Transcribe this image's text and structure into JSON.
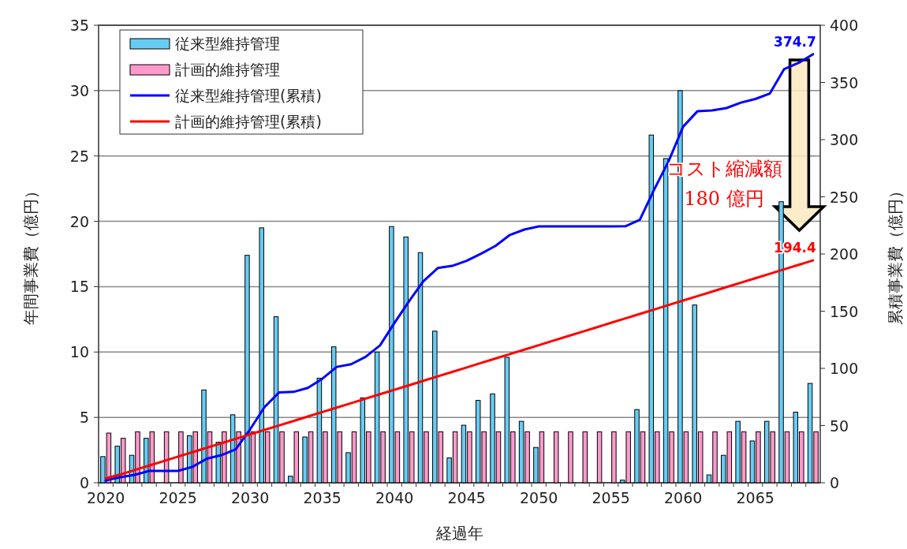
{
  "chart_data": {
    "type": "bar",
    "xlabel": "経過年",
    "ylabel": "年間事業費（億円）",
    "y2label": "累積事業費（億円）",
    "categories": [
      "2020",
      null,
      null,
      null,
      null,
      "2025",
      null,
      null,
      null,
      null,
      "2030",
      null,
      null,
      null,
      null,
      "2035",
      null,
      null,
      null,
      null,
      "2040",
      null,
      null,
      null,
      null,
      "2045",
      null,
      null,
      null,
      null,
      "2050",
      null,
      null,
      null,
      null,
      "2055",
      null,
      null,
      null,
      null,
      "2060",
      null,
      null,
      null,
      null,
      "2065",
      null,
      null,
      null,
      null
    ],
    "series": [
      {
        "name": "従来型維持管理",
        "type": "bar",
        "color": "#66ccf5",
        "values": [
          2.0,
          2.8,
          2.1,
          3.4,
          0,
          0,
          3.6,
          7.1,
          3.1,
          5.2,
          17.4,
          19.5,
          12.7,
          0.5,
          3.5,
          8.0,
          10.4,
          2.3,
          6.5,
          10.0,
          19.6,
          18.8,
          17.6,
          11.6,
          1.9,
          4.4,
          6.3,
          6.8,
          9.6,
          4.7,
          2.7,
          0,
          0,
          0,
          0,
          0,
          0.2,
          5.6,
          26.6,
          24.8,
          30.0,
          13.6,
          0.6,
          2.1,
          4.7,
          3.2,
          4.7,
          21.5,
          5.4,
          7.6
        ]
      },
      {
        "name": "計画的維持管理",
        "type": "bar",
        "color": "#ff99cc",
        "values": [
          3.8,
          3.4,
          3.9,
          3.9,
          3.9,
          3.9,
          3.9,
          3.9,
          3.9,
          3.9,
          3.9,
          3.9,
          3.9,
          3.9,
          3.9,
          3.9,
          3.9,
          3.9,
          3.9,
          3.9,
          3.9,
          3.9,
          3.9,
          3.9,
          3.9,
          3.9,
          3.9,
          3.9,
          3.9,
          3.9,
          3.9,
          3.9,
          3.9,
          3.9,
          3.9,
          3.9,
          3.9,
          3.9,
          3.9,
          3.9,
          3.9,
          3.9,
          3.9,
          3.9,
          3.9,
          3.9,
          3.9,
          3.9,
          3.9,
          3.9
        ]
      },
      {
        "name": "従来型維持管理(累積)",
        "type": "line",
        "axis": "y2",
        "color": "#0000ff",
        "values": [
          2.0,
          4.8,
          6.9,
          10.3,
          10.3,
          10.3,
          13.9,
          21.0,
          24.1,
          29.3,
          46.7,
          66.2,
          78.9,
          79.4,
          82.9,
          90.9,
          101.3,
          103.6,
          110.1,
          120.1,
          139.7,
          158.5,
          176.1,
          187.7,
          189.6,
          194.0,
          200.3,
          207.1,
          216.7,
          221.4,
          224.1,
          224.1,
          224.1,
          224.1,
          224.1,
          224.1,
          224.3,
          229.9,
          256.5,
          281.3,
          311.3,
          324.9,
          325.5,
          327.6,
          332.3,
          335.5,
          340.2,
          361.7,
          367.1,
          374.7
        ]
      },
      {
        "name": "計画的維持管理(累積)",
        "type": "line",
        "axis": "y2",
        "color": "#ff0000",
        "values": [
          3.8,
          7.2,
          11.1,
          15.0,
          18.9,
          22.8,
          26.7,
          30.6,
          34.5,
          38.4,
          42.3,
          46.2,
          50.1,
          54.0,
          57.9,
          61.8,
          65.7,
          69.6,
          73.5,
          77.4,
          81.3,
          85.2,
          89.1,
          93.0,
          96.9,
          100.8,
          104.7,
          108.6,
          112.5,
          116.4,
          120.3,
          124.2,
          128.1,
          132.0,
          135.9,
          139.8,
          143.7,
          147.6,
          151.5,
          155.4,
          159.3,
          163.2,
          167.1,
          171.0,
          174.9,
          178.8,
          182.7,
          186.6,
          190.5,
          194.4
        ]
      }
    ],
    "ylim": [
      0,
      35
    ],
    "yticks": [
      0,
      5,
      10,
      15,
      20,
      25,
      30,
      35
    ],
    "y2lim": [
      0,
      400
    ],
    "y2ticks": [
      0,
      50,
      100,
      150,
      200,
      250,
      300,
      350,
      400
    ],
    "grid": "y",
    "legend": "top left",
    "annotations": [
      "374.7",
      "194.4",
      "コスト縮減額\n180 億円"
    ]
  }
}
